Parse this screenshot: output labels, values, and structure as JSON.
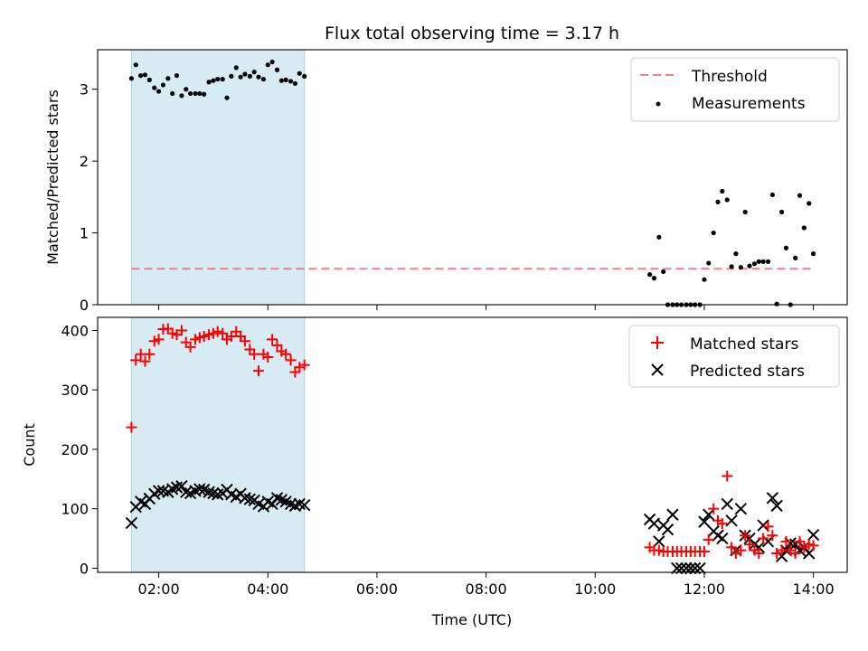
{
  "title": "Flux total observing time = 3.17 h",
  "chart_data": [
    {
      "type": "scatter",
      "ylabel": "Matched/Predicted stars",
      "xlim": [
        0.88,
        14.62
      ],
      "ylim": [
        0,
        3.55
      ],
      "yticks": [
        0,
        1,
        2,
        3
      ],
      "shaded_span": {
        "x": [
          1.5,
          4.67
        ],
        "color": "#add8e6"
      },
      "threshold": {
        "name": "Threshold",
        "y": 0.5,
        "x": [
          1.5,
          14.0
        ],
        "color": "#f08080"
      },
      "legend": {
        "position": "top-right",
        "entries": [
          "Threshold",
          "Measurements"
        ]
      },
      "series": [
        {
          "name": "Measurements",
          "color": "#000000",
          "x": [
            1.5,
            1.58,
            1.67,
            1.75,
            1.83,
            1.92,
            2.0,
            2.08,
            2.17,
            2.25,
            2.33,
            2.42,
            2.5,
            2.58,
            2.67,
            2.75,
            2.83,
            2.92,
            3.0,
            3.08,
            3.17,
            3.25,
            3.33,
            3.42,
            3.5,
            3.58,
            3.67,
            3.75,
            3.83,
            3.92,
            4.0,
            4.08,
            4.17,
            4.25,
            4.33,
            4.42,
            4.5,
            4.58,
            4.67,
            11.0,
            11.08,
            11.17,
            11.25,
            11.33,
            11.42,
            11.5,
            11.58,
            11.67,
            11.75,
            11.83,
            11.92,
            12.0,
            12.08,
            12.17,
            12.25,
            12.33,
            12.42,
            12.5,
            12.58,
            12.67,
            12.75,
            12.83,
            12.92,
            13.0,
            13.08,
            13.17,
            13.25,
            13.33,
            13.42,
            13.5,
            13.58,
            13.67,
            13.75,
            13.83,
            13.92,
            14.0
          ],
          "y": [
            3.15,
            3.34,
            3.19,
            3.2,
            3.13,
            3.02,
            2.97,
            3.06,
            3.15,
            2.94,
            3.19,
            2.91,
            3.0,
            2.94,
            2.94,
            2.94,
            2.93,
            3.1,
            3.12,
            3.14,
            3.14,
            2.88,
            3.18,
            3.3,
            3.17,
            3.21,
            3.18,
            3.24,
            3.17,
            3.14,
            3.34,
            3.38,
            3.27,
            3.12,
            3.13,
            3.11,
            3.08,
            3.22,
            3.18,
            0.42,
            0.37,
            0.94,
            0.46,
            0.0,
            0.0,
            0.0,
            0.0,
            0.0,
            0.0,
            0.0,
            0.0,
            0.35,
            0.58,
            1.0,
            1.43,
            1.58,
            1.46,
            0.53,
            0.71,
            0.52,
            1.29,
            0.54,
            0.57,
            0.6,
            0.6,
            0.6,
            1.53,
            0.01,
            1.29,
            0.79,
            0.0,
            0.65,
            1.52,
            1.07,
            1.41,
            0.71
          ]
        }
      ]
    },
    {
      "type": "scatter",
      "ylabel": "Count",
      "xlabel": "Time (UTC)",
      "xlim": [
        0.88,
        14.62
      ],
      "ylim": [
        -7,
        422
      ],
      "yticks": [
        0,
        100,
        200,
        300,
        400
      ],
      "xticks": [
        "02:00",
        "04:00",
        "06:00",
        "08:00",
        "10:00",
        "12:00",
        "14:00"
      ],
      "xtick_values": [
        2,
        4,
        6,
        8,
        10,
        12,
        14
      ],
      "shaded_span": {
        "x": [
          1.5,
          4.67
        ],
        "color": "#add8e6"
      },
      "legend": {
        "position": "top-right",
        "entries": [
          "Matched stars",
          "Predicted stars"
        ]
      },
      "series": [
        {
          "name": "Matched stars",
          "marker": "+",
          "color": "#ff0000",
          "x": [
            1.5,
            1.58,
            1.67,
            1.75,
            1.83,
            1.92,
            2.0,
            2.08,
            2.17,
            2.25,
            2.33,
            2.42,
            2.5,
            2.58,
            2.67,
            2.75,
            2.83,
            2.92,
            3.0,
            3.08,
            3.17,
            3.25,
            3.33,
            3.42,
            3.5,
            3.58,
            3.67,
            3.75,
            3.83,
            3.92,
            4.0,
            4.08,
            4.17,
            4.25,
            4.33,
            4.42,
            4.5,
            4.58,
            4.67,
            11.0,
            11.08,
            11.17,
            11.25,
            11.33,
            11.42,
            11.5,
            11.58,
            11.67,
            11.75,
            11.83,
            11.92,
            12.0,
            12.08,
            12.17,
            12.25,
            12.33,
            12.42,
            12.5,
            12.58,
            12.67,
            12.75,
            12.83,
            12.92,
            13.0,
            13.08,
            13.17,
            13.25,
            13.33,
            13.42,
            13.5,
            13.58,
            13.67,
            13.75,
            13.83,
            13.92,
            14.0
          ],
          "y": [
            237,
            350,
            360,
            348,
            360,
            382,
            385,
            402,
            403,
            395,
            393,
            400,
            380,
            372,
            385,
            388,
            390,
            393,
            395,
            398,
            395,
            385,
            390,
            398,
            390,
            382,
            368,
            360,
            332,
            360,
            355,
            385,
            375,
            365,
            360,
            350,
            330,
            338,
            342,
            35,
            30,
            30,
            28,
            28,
            28,
            28,
            28,
            28,
            28,
            28,
            28,
            28,
            48,
            100,
            80,
            75,
            155,
            35,
            25,
            30,
            55,
            40,
            30,
            25,
            50,
            70,
            55,
            25,
            30,
            45,
            30,
            25,
            45,
            35,
            40,
            38
          ]
        },
        {
          "name": "Predicted stars",
          "marker": "x",
          "color": "#000000",
          "x": [
            1.5,
            1.58,
            1.67,
            1.75,
            1.83,
            1.92,
            2.0,
            2.08,
            2.17,
            2.25,
            2.33,
            2.42,
            2.5,
            2.58,
            2.67,
            2.75,
            2.83,
            2.92,
            3.0,
            3.08,
            3.17,
            3.25,
            3.33,
            3.42,
            3.5,
            3.58,
            3.67,
            3.75,
            3.83,
            3.92,
            4.0,
            4.08,
            4.17,
            4.25,
            4.33,
            4.42,
            4.5,
            4.58,
            4.67,
            11.0,
            11.08,
            11.17,
            11.25,
            11.33,
            11.42,
            11.5,
            11.58,
            11.67,
            11.75,
            11.83,
            11.92,
            12.0,
            12.08,
            12.17,
            12.25,
            12.33,
            12.42,
            12.5,
            12.58,
            12.67,
            12.75,
            12.83,
            12.92,
            13.0,
            13.08,
            13.17,
            13.25,
            13.33,
            13.42,
            13.5,
            13.58,
            13.67,
            13.75,
            13.83,
            13.92,
            14.0
          ],
          "y": [
            76,
            103,
            112,
            108,
            117,
            125,
            130,
            130,
            128,
            133,
            136,
            138,
            128,
            126,
            130,
            133,
            132,
            128,
            126,
            124,
            126,
            132,
            124,
            120,
            125,
            118,
            116,
            114,
            108,
            104,
            112,
            108,
            118,
            115,
            112,
            108,
            105,
            108,
            106,
            82,
            75,
            45,
            72,
            65,
            90,
            0,
            0,
            0,
            0,
            0,
            0,
            78,
            90,
            62,
            55,
            50,
            108,
            80,
            30,
            100,
            55,
            50,
            40,
            35,
            72,
            45,
            118,
            105,
            20,
            30,
            42,
            40,
            30,
            35,
            25,
            56
          ]
        }
      ]
    }
  ]
}
